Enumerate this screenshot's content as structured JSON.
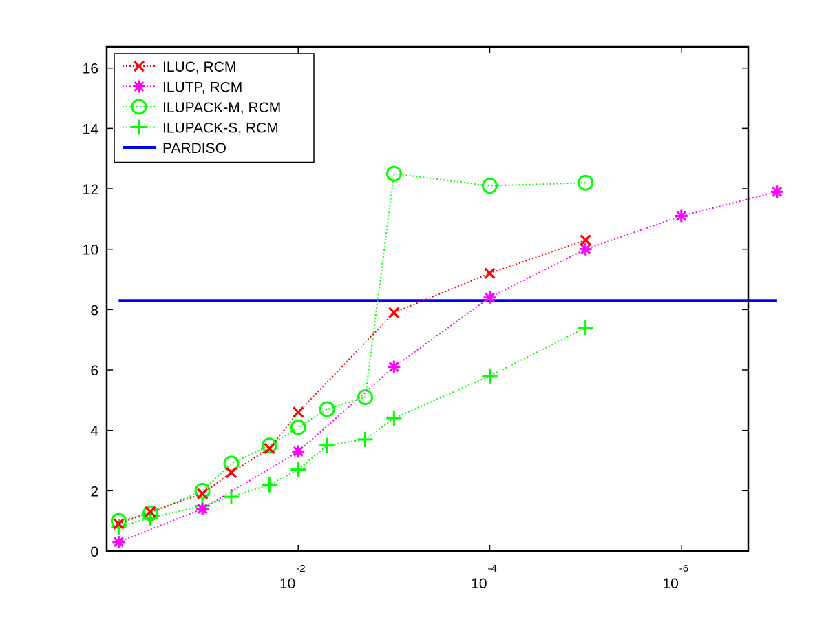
{
  "chart_data": {
    "type": "line",
    "title": "",
    "xlabel": "",
    "ylabel": "",
    "x_scale": "log",
    "x_direction": "reversed",
    "xlim": [
      1,
      2e-07
    ],
    "ylim": [
      0,
      16.7
    ],
    "y_ticks": [
      0,
      2,
      4,
      6,
      8,
      10,
      12,
      14,
      16
    ],
    "y_tick_labels": [
      "0",
      "2",
      "4",
      "6",
      "8",
      "10",
      "12",
      "14",
      "16"
    ],
    "x_ticks": [
      {
        "value": 0.01,
        "base": "10",
        "exponent": "-2"
      },
      {
        "value": 0.0001,
        "base": "10",
        "exponent": "-4"
      },
      {
        "value": 1e-06,
        "base": "10",
        "exponent": "-6"
      }
    ],
    "grid": false,
    "legend_position": "top-left",
    "series": [
      {
        "name": "ILUC, RCM",
        "color": "#ff0000",
        "marker": "x",
        "line_style": "dotted",
        "x": [
          0.75,
          0.35,
          0.1,
          0.05,
          0.02,
          0.01,
          0.001,
          0.0001,
          1e-05
        ],
        "y": [
          0.9,
          1.3,
          1.9,
          2.6,
          3.4,
          4.6,
          7.9,
          9.2,
          10.3
        ]
      },
      {
        "name": "ILUTP, RCM",
        "color": "#ff00ff",
        "marker": "asterisk",
        "line_style": "dotted",
        "x": [
          0.75,
          0.1,
          0.01,
          0.001,
          0.0001,
          1e-05,
          1e-06,
          1e-07
        ],
        "y": [
          0.3,
          1.4,
          3.3,
          6.1,
          8.4,
          10.0,
          11.1,
          11.9
        ]
      },
      {
        "name": "ILUPACK-M, RCM",
        "color": "#00ff00",
        "marker": "circle",
        "line_style": "dotted",
        "x": [
          0.75,
          0.35,
          0.1,
          0.05,
          0.02,
          0.01,
          0.005,
          0.002,
          0.001,
          0.0001,
          1e-05
        ],
        "y": [
          1.0,
          1.25,
          2.0,
          2.9,
          3.5,
          4.1,
          4.7,
          5.1,
          12.5,
          12.1,
          12.2
        ]
      },
      {
        "name": "ILUPACK-S, RCM",
        "color": "#00ff00",
        "marker": "plus",
        "line_style": "dotted",
        "x": [
          0.75,
          0.35,
          0.1,
          0.05,
          0.02,
          0.01,
          0.005,
          0.002,
          0.001,
          0.0001,
          1e-05
        ],
        "y": [
          0.8,
          1.1,
          1.5,
          1.8,
          2.2,
          2.7,
          3.5,
          3.7,
          4.4,
          5.8,
          7.4
        ]
      },
      {
        "name": "PARDISO",
        "color": "#0000ff",
        "marker": "none",
        "line_style": "solid",
        "x": [
          0.75,
          1e-07
        ],
        "y": [
          8.3,
          8.3
        ]
      }
    ]
  }
}
